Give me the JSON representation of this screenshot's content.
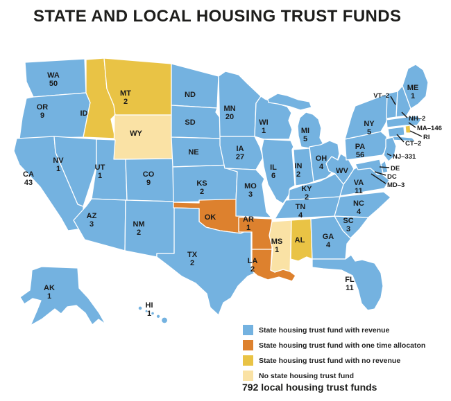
{
  "title": "STATE AND LOCAL HOUSING TRUST FUNDS",
  "footer": "792 local housing trust funds",
  "colors": {
    "revenue": "#74b2e0",
    "one_time": "#dd812e",
    "no_revenue": "#e9c345",
    "no_fund": "#fae2a5"
  },
  "legend": [
    {
      "key": "revenue",
      "label": "State housing trust fund with revenue"
    },
    {
      "key": "one_time",
      "label": "State housing trust fund with one time allocaton"
    },
    {
      "key": "no_revenue",
      "label": "State housing trust fund with no revenue"
    },
    {
      "key": "no_fund",
      "label": "No state housing trust fund"
    }
  ],
  "states": [
    {
      "abbr": "WA",
      "count": "50",
      "category": "revenue"
    },
    {
      "abbr": "OR",
      "count": "9",
      "category": "revenue"
    },
    {
      "abbr": "CA",
      "count": "43",
      "category": "revenue"
    },
    {
      "abbr": "NV",
      "count": "1",
      "category": "revenue"
    },
    {
      "abbr": "ID",
      "count": null,
      "category": "no_revenue"
    },
    {
      "abbr": "MT",
      "count": "2",
      "category": "no_revenue"
    },
    {
      "abbr": "WY",
      "count": null,
      "category": "no_fund"
    },
    {
      "abbr": "UT",
      "count": "1",
      "category": "revenue"
    },
    {
      "abbr": "CO",
      "count": "9",
      "category": "revenue"
    },
    {
      "abbr": "AZ",
      "count": "3",
      "category": "revenue"
    },
    {
      "abbr": "NM",
      "count": "2",
      "category": "revenue"
    },
    {
      "abbr": "ND",
      "count": null,
      "category": "revenue"
    },
    {
      "abbr": "SD",
      "count": null,
      "category": "revenue"
    },
    {
      "abbr": "NE",
      "count": null,
      "category": "revenue"
    },
    {
      "abbr": "KS",
      "count": "2",
      "category": "revenue"
    },
    {
      "abbr": "OK",
      "count": null,
      "category": "one_time"
    },
    {
      "abbr": "TX",
      "count": "2",
      "category": "revenue"
    },
    {
      "abbr": "MN",
      "count": "20",
      "category": "revenue"
    },
    {
      "abbr": "IA",
      "count": "27",
      "category": "revenue"
    },
    {
      "abbr": "MO",
      "count": "3",
      "category": "revenue"
    },
    {
      "abbr": "AR",
      "count": "1",
      "category": "one_time"
    },
    {
      "abbr": "LA",
      "count": "2",
      "category": "one_time"
    },
    {
      "abbr": "WI",
      "count": "1",
      "category": "revenue"
    },
    {
      "abbr": "IL",
      "count": "6",
      "category": "revenue"
    },
    {
      "abbr": "MS",
      "count": "1",
      "category": "no_fund"
    },
    {
      "abbr": "AL",
      "count": null,
      "category": "no_revenue"
    },
    {
      "abbr": "MI",
      "count": "5",
      "category": "revenue"
    },
    {
      "abbr": "IN",
      "count": "2",
      "category": "revenue"
    },
    {
      "abbr": "OH",
      "count": "4",
      "category": "revenue"
    },
    {
      "abbr": "KY",
      "count": "2",
      "category": "revenue"
    },
    {
      "abbr": "TN",
      "count": "4",
      "category": "revenue"
    },
    {
      "abbr": "GA",
      "count": "4",
      "category": "revenue"
    },
    {
      "abbr": "FL",
      "count": "11",
      "category": "revenue"
    },
    {
      "abbr": "SC",
      "count": "3",
      "category": "revenue"
    },
    {
      "abbr": "NC",
      "count": "4",
      "category": "revenue"
    },
    {
      "abbr": "VA",
      "count": "11",
      "category": "revenue"
    },
    {
      "abbr": "WV",
      "count": null,
      "category": "revenue"
    },
    {
      "abbr": "PA",
      "count": "56",
      "category": "revenue"
    },
    {
      "abbr": "NY",
      "count": "5",
      "category": "revenue"
    },
    {
      "abbr": "ME",
      "count": "1",
      "category": "revenue"
    },
    {
      "abbr": "VT",
      "count": "2",
      "category": "revenue"
    },
    {
      "abbr": "NH",
      "count": "2",
      "category": "revenue"
    },
    {
      "abbr": "MA",
      "count": "146",
      "category": "revenue"
    },
    {
      "abbr": "RI",
      "count": null,
      "category": "no_revenue"
    },
    {
      "abbr": "CT",
      "count": "2",
      "category": "revenue"
    },
    {
      "abbr": "NJ",
      "count": "331",
      "category": "revenue"
    },
    {
      "abbr": "DE",
      "count": null,
      "category": "revenue"
    },
    {
      "abbr": "DC",
      "count": null,
      "category": null
    },
    {
      "abbr": "MD",
      "count": "3",
      "category": "revenue"
    },
    {
      "abbr": "AK",
      "count": "1",
      "category": "revenue"
    },
    {
      "abbr": "HI",
      "count": "1",
      "category": "revenue"
    }
  ],
  "chart_data": {
    "type": "heatmap",
    "title": "STATE AND LOCAL HOUSING TRUST FUNDS",
    "legend_position": "bottom-right",
    "categories": [
      "State housing trust fund with revenue",
      "State housing trust fund with one time allocaton",
      "State housing trust fund with no revenue",
      "No state housing trust fund"
    ],
    "total_note": "792 local housing trust funds",
    "series": [
      {
        "name": "local_fund_counts_by_state",
        "values": {
          "WA": 50,
          "OR": 9,
          "CA": 43,
          "NV": 1,
          "MT": 2,
          "UT": 1,
          "CO": 9,
          "AZ": 3,
          "NM": 2,
          "KS": 2,
          "TX": 2,
          "MN": 20,
          "IA": 27,
          "MO": 3,
          "AR": 1,
          "LA": 2,
          "WI": 1,
          "IL": 6,
          "MS": 1,
          "MI": 5,
          "IN": 2,
          "OH": 4,
          "KY": 2,
          "TN": 4,
          "GA": 4,
          "FL": 11,
          "SC": 3,
          "NC": 4,
          "VA": 11,
          "PA": 56,
          "NY": 5,
          "ME": 1,
          "VT": 2,
          "NH": 2,
          "MA": 146,
          "CT": 2,
          "NJ": 331,
          "MD": 3,
          "AK": 1,
          "HI": 1
        }
      }
    ]
  }
}
